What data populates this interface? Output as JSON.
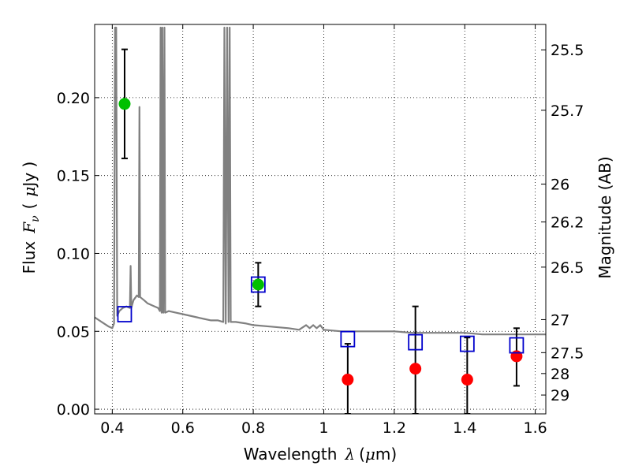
{
  "chart_data": {
    "type": "scatter",
    "xlabel": "Wavelength",
    "xlabel_math": "λ",
    "xlabel_unit_pre": "(",
    "xlabel_unit_mu": "μ",
    "xlabel_unit_post": "m)",
    "ylabel": "Flux",
    "ylabel_math": "F",
    "ylabel_math_sub": "ν",
    "ylabel_unit_pre": "(",
    "ylabel_unit_mu": "μ",
    "ylabel_unit_post": "Jy )",
    "ylabel_right": "Magnitude (AB)",
    "xlim": [
      0.35,
      1.63
    ],
    "ylim": [
      -0.003,
      0.247
    ],
    "grid": true,
    "x_ticks": [
      0.4,
      0.6,
      0.8,
      1.0,
      1.2,
      1.4,
      1.6
    ],
    "x_tick_labels": [
      "0.4",
      "0.6",
      "0.8",
      "1",
      "1.2",
      "1.4",
      "1.6"
    ],
    "y_ticks": [
      0.0,
      0.05,
      0.1,
      0.15,
      0.2
    ],
    "y_tick_labels": [
      "0.00",
      "0.05",
      "0.10",
      "0.15",
      "0.20"
    ],
    "right_ticks": [
      {
        "flux": 0.2307,
        "label": "25.5"
      },
      {
        "flux": 0.1919,
        "label": "25.7"
      },
      {
        "flux": 0.1445,
        "label": "26"
      },
      {
        "flux": 0.1202,
        "label": "26.2"
      },
      {
        "flux": 0.0912,
        "label": "26.5"
      },
      {
        "flux": 0.0575,
        "label": "27"
      },
      {
        "flux": 0.0363,
        "label": "27.5"
      },
      {
        "flux": 0.0229,
        "label": "28"
      },
      {
        "flux": 0.0091,
        "label": "29"
      }
    ],
    "series": [
      {
        "marker": "circle",
        "color": "#00c000",
        "points": [
          {
            "x": 0.435,
            "y": 0.196,
            "ylo": 0.161,
            "yhi": 0.231
          },
          {
            "x": 0.814,
            "y": 0.08,
            "ylo": 0.066,
            "yhi": 0.094
          }
        ]
      },
      {
        "marker": "circle",
        "color": "#ff0000",
        "points": [
          {
            "x": 1.068,
            "y": 0.019,
            "ylo": -0.003,
            "yhi": 0.042
          },
          {
            "x": 1.26,
            "y": 0.026,
            "ylo": -0.003,
            "yhi": 0.066
          },
          {
            "x": 1.407,
            "y": 0.019,
            "ylo": -0.003,
            "yhi": 0.046
          },
          {
            "x": 1.547,
            "y": 0.034,
            "ylo": 0.015,
            "yhi": 0.052
          }
        ]
      },
      {
        "marker": "square-open",
        "color": "#0000cc",
        "points": [
          {
            "x": 0.435,
            "y": 0.061
          },
          {
            "x": 0.814,
            "y": 0.08
          },
          {
            "x": 1.068,
            "y": 0.045
          },
          {
            "x": 1.26,
            "y": 0.043
          },
          {
            "x": 1.407,
            "y": 0.042
          },
          {
            "x": 1.547,
            "y": 0.041
          }
        ]
      }
    ],
    "sed_model": {
      "color": "#808080",
      "points": [
        [
          0.35,
          0.059
        ],
        [
          0.37,
          0.056
        ],
        [
          0.39,
          0.053
        ],
        [
          0.4,
          0.052
        ],
        [
          0.405,
          0.055
        ],
        [
          0.408,
          0.245
        ],
        [
          0.411,
          0.245
        ],
        [
          0.414,
          0.06
        ],
        [
          0.42,
          0.063
        ],
        [
          0.43,
          0.065
        ],
        [
          0.44,
          0.066
        ],
        [
          0.45,
          0.065
        ],
        [
          0.452,
          0.092
        ],
        [
          0.454,
          0.065
        ],
        [
          0.46,
          0.07
        ],
        [
          0.47,
          0.073
        ],
        [
          0.475,
          0.072
        ],
        [
          0.477,
          0.194
        ],
        [
          0.479,
          0.072
        ],
        [
          0.49,
          0.07
        ],
        [
          0.5,
          0.068
        ],
        [
          0.51,
          0.067
        ],
        [
          0.52,
          0.066
        ],
        [
          0.53,
          0.065
        ],
        [
          0.535,
          0.063
        ],
        [
          0.537,
          0.245
        ],
        [
          0.54,
          0.062
        ],
        [
          0.542,
          0.245
        ],
        [
          0.545,
          0.062
        ],
        [
          0.548,
          0.245
        ],
        [
          0.55,
          0.062
        ],
        [
          0.56,
          0.063
        ],
        [
          0.58,
          0.062
        ],
        [
          0.6,
          0.061
        ],
        [
          0.62,
          0.06
        ],
        [
          0.64,
          0.059
        ],
        [
          0.66,
          0.058
        ],
        [
          0.68,
          0.057
        ],
        [
          0.7,
          0.057
        ],
        [
          0.715,
          0.056
        ],
        [
          0.718,
          0.245
        ],
        [
          0.722,
          0.055
        ],
        [
          0.726,
          0.245
        ],
        [
          0.73,
          0.056
        ],
        [
          0.733,
          0.245
        ],
        [
          0.736,
          0.056
        ],
        [
          0.75,
          0.056
        ],
        [
          0.78,
          0.055
        ],
        [
          0.8,
          0.054
        ],
        [
          0.85,
          0.053
        ],
        [
          0.9,
          0.052
        ],
        [
          0.93,
          0.051
        ],
        [
          0.95,
          0.054
        ],
        [
          0.96,
          0.052
        ],
        [
          0.97,
          0.054
        ],
        [
          0.98,
          0.052
        ],
        [
          0.99,
          0.054
        ],
        [
          1.0,
          0.051
        ],
        [
          1.05,
          0.05
        ],
        [
          1.1,
          0.05
        ],
        [
          1.15,
          0.05
        ],
        [
          1.2,
          0.05
        ],
        [
          1.25,
          0.049
        ],
        [
          1.3,
          0.049
        ],
        [
          1.35,
          0.049
        ],
        [
          1.4,
          0.049
        ],
        [
          1.45,
          0.048
        ],
        [
          1.5,
          0.048
        ],
        [
          1.55,
          0.048
        ],
        [
          1.6,
          0.048
        ],
        [
          1.63,
          0.048
        ]
      ]
    }
  }
}
